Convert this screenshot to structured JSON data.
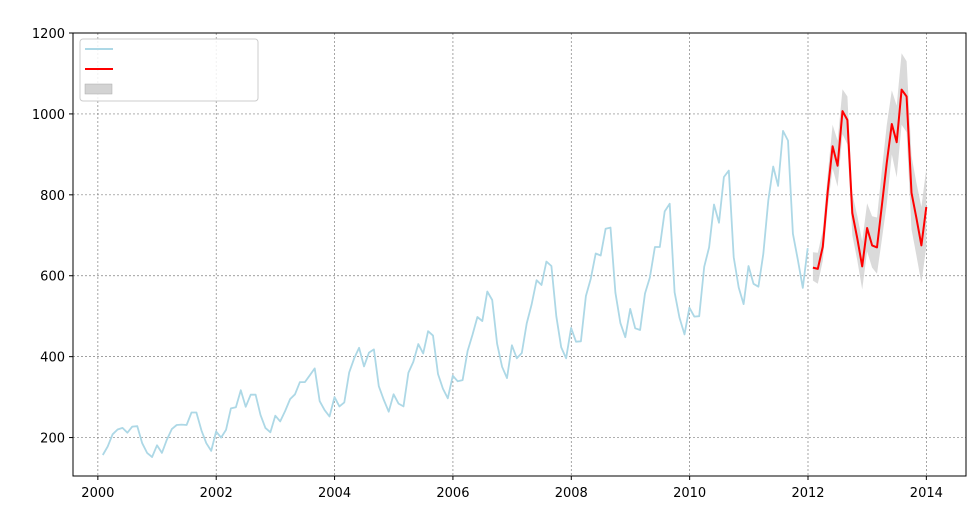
{
  "chart_data": {
    "type": "line",
    "title": "",
    "xlabel": "",
    "ylabel": "",
    "xlim": [
      1999.58,
      2014.67
    ],
    "ylim": [
      105,
      1200
    ],
    "x_ticks": [
      2000,
      2002,
      2004,
      2006,
      2008,
      2010,
      2012,
      2014
    ],
    "y_ticks": [
      200,
      400,
      600,
      800,
      1000,
      1200
    ],
    "grid": true,
    "legend": {
      "placement": "top-left",
      "entries": [
        {
          "label": "",
          "kind": "line",
          "color": "#add8e6"
        },
        {
          "label": "",
          "kind": "line",
          "color": "#ff0000"
        },
        {
          "label": "",
          "kind": "band",
          "color": "#d3d3d3"
        }
      ]
    },
    "colors": {
      "history": "#add8e6",
      "forecast": "#ff0000",
      "interval": "#d3d3d3"
    },
    "history": {
      "start_year": 2000.083,
      "step": 0.0833,
      "values": [
        157,
        178,
        208,
        220,
        224,
        212,
        227,
        228,
        186,
        162,
        152,
        181,
        162,
        195,
        221,
        231,
        232,
        231,
        262,
        262,
        218,
        186,
        167,
        215,
        200,
        219,
        272,
        275,
        317,
        276,
        306,
        306,
        256,
        224,
        213,
        254,
        240,
        266,
        295,
        307,
        337,
        337,
        354,
        371,
        290,
        268,
        252,
        300,
        277,
        287,
        361,
        396,
        422,
        376,
        410,
        418,
        327,
        293,
        264,
        307,
        284,
        277,
        360,
        387,
        431,
        408,
        463,
        452,
        357,
        321,
        297,
        353,
        339,
        342,
        414,
        454,
        498,
        488,
        561,
        540,
        432,
        375,
        347,
        428,
        396,
        409,
        482,
        529,
        589,
        577,
        635,
        624,
        500,
        423,
        396,
        471,
        437,
        438,
        550,
        593,
        655,
        650,
        716,
        719,
        558,
        483,
        448,
        518,
        470,
        466,
        556,
        596,
        671,
        671,
        759,
        778,
        559,
        496,
        455,
        521,
        499,
        500,
        622,
        670,
        776,
        731,
        844,
        860,
        646,
        571,
        530,
        624,
        580,
        573,
        654,
        786,
        870,
        822,
        958,
        934,
        704,
        640,
        570,
        668
      ]
    },
    "forecast": {
      "start_year": 2012.083,
      "step": 0.0833,
      "values": [
        620,
        617,
        672,
        808,
        920,
        872,
        1007,
        985,
        755,
        692,
        623,
        718,
        675,
        670,
        774,
        880,
        975,
        930,
        1060,
        1043,
        805,
        743,
        675,
        770
      ],
      "lower": [
        588,
        580,
        637,
        770,
        865,
        820,
        950,
        925,
        700,
        638,
        566,
        660,
        620,
        605,
        690,
        778,
        900,
        843,
        973,
        955,
        715,
        650,
        582,
        672
      ],
      "upper": [
        658,
        657,
        712,
        850,
        973,
        934,
        1061,
        1043,
        803,
        748,
        685,
        779,
        747,
        744,
        862,
        973,
        1058,
        1020,
        1150,
        1130,
        896,
        830,
        770,
        865
      ]
    }
  }
}
